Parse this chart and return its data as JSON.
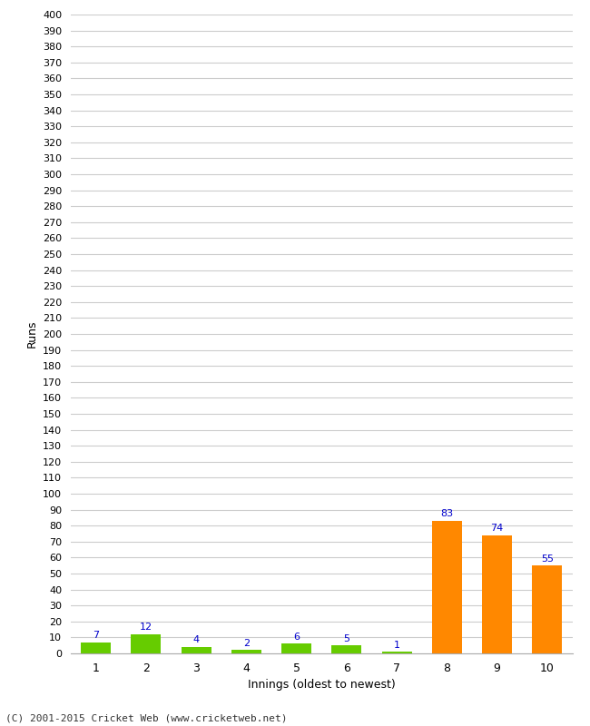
{
  "categories": [
    "1",
    "2",
    "3",
    "4",
    "5",
    "6",
    "7",
    "8",
    "9",
    "10"
  ],
  "values": [
    7,
    12,
    4,
    2,
    6,
    5,
    1,
    83,
    74,
    55
  ],
  "bar_colors": [
    "#66cc00",
    "#66cc00",
    "#66cc00",
    "#66cc00",
    "#66cc00",
    "#66cc00",
    "#66cc00",
    "#ff8800",
    "#ff8800",
    "#ff8800"
  ],
  "xlabel": "Innings (oldest to newest)",
  "ylabel": "Runs",
  "ylim": [
    0,
    400
  ],
  "ytick_step": 10,
  "annotation_color": "#0000cc",
  "annotation_fontsize": 8,
  "background_color": "#ffffff",
  "grid_color": "#cccccc",
  "footer": "(C) 2001-2015 Cricket Web (www.cricketweb.net)",
  "figsize": [
    6.5,
    8.0
  ],
  "dpi": 100
}
